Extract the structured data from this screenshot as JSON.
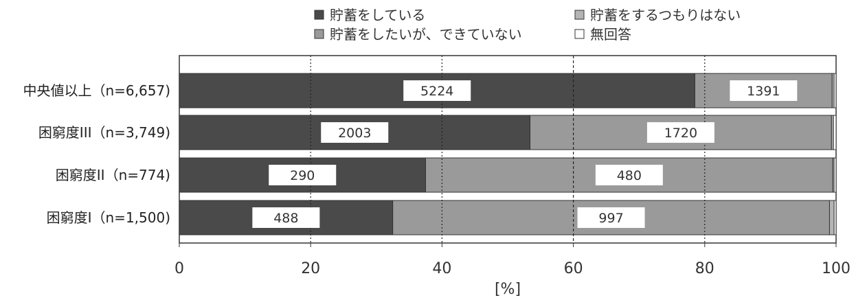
{
  "chart_data": {
    "type": "bar",
    "orientation": "horizontal",
    "stacked": true,
    "xlabel": "[%]",
    "xlim": [
      0,
      100
    ],
    "xticks": [
      0,
      20,
      40,
      60,
      80,
      100
    ],
    "grid": "vertical dotted at 20, 40, 80; dashed at 60",
    "legend_position": "top",
    "categories": [
      "中央値以上（n=6,657)",
      "困窮度III（n=3,749)",
      "困窮度II（n=774)",
      "困窮度I（n=1,500)"
    ],
    "series": [
      {
        "name": "貯蓄をしている",
        "color": "#4a4a4a",
        "values_pct": [
          78.5,
          53.4,
          37.5,
          32.5
        ],
        "labels": [
          "5224",
          "2003",
          "290",
          "488"
        ]
      },
      {
        "name": "貯蓄をしたいが、できていない",
        "color": "#9a9a9a",
        "values_pct": [
          20.9,
          45.9,
          62.0,
          66.5
        ],
        "labels": [
          "1391",
          "1720",
          "480",
          "997"
        ]
      },
      {
        "name": "貯蓄をするつもりはない",
        "color": "#b4b4b4",
        "values_pct": [
          0.3,
          0.3,
          0.2,
          0.7
        ],
        "labels": [
          "",
          "",
          "",
          ""
        ]
      },
      {
        "name": "無回答",
        "color": "#ffffff",
        "values_pct": [
          0.3,
          0.4,
          0.3,
          0.3
        ],
        "labels": [
          "",
          "",
          "",
          ""
        ]
      }
    ]
  }
}
